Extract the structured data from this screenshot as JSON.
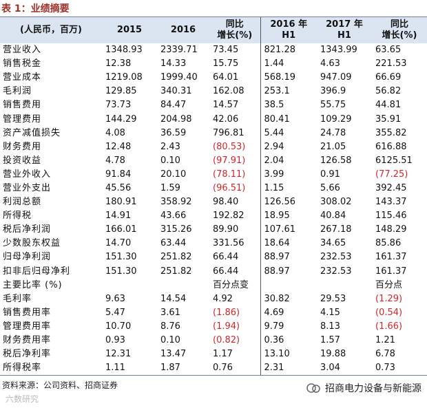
{
  "title": "表 1：业绩摘要",
  "table": {
    "header": [
      [
        "(人民币，百万)"
      ],
      [
        "2015"
      ],
      [
        "2016"
      ],
      [
        "同比",
        "增长(%)"
      ],
      [
        "2016 年",
        "H1"
      ],
      [
        "2017 年",
        "H1"
      ],
      [
        "同比",
        "增长(%)"
      ]
    ],
    "rows": [
      [
        "营业收入",
        "1348.93",
        "2339.71",
        "73.45",
        "821.28",
        "1343.99",
        "63.65"
      ],
      [
        "销售税金",
        "12.38",
        "14.33",
        "15.75",
        "1.44",
        "4.63",
        "221.53"
      ],
      [
        "营业成本",
        "1219.08",
        "1999.40",
        "64.01",
        "568.19",
        "947.09",
        "66.69"
      ],
      [
        "毛利润",
        "129.85",
        "340.31",
        "162.08",
        "253.1",
        "396.9",
        "56.82"
      ],
      [
        "销售费用",
        "73.73",
        "84.47",
        "14.57",
        "38.5",
        "55.75",
        "44.81"
      ],
      [
        "管理费用",
        "144.29",
        "204.98",
        "42.06",
        "80.41",
        "109.29",
        "35.91"
      ],
      [
        "资产减值损失",
        "4.08",
        "36.59",
        "796.81",
        "5.44",
        "24.78",
        "355.82"
      ],
      [
        "财务费用",
        "12.48",
        "2.43",
        "(80.53)",
        "2.94",
        "21.05",
        "616.88"
      ],
      [
        "投资收益",
        "4.78",
        "0.10",
        "(97.91)",
        "2.04",
        "126.58",
        "6125.51"
      ],
      [
        "营业外收入",
        "91.84",
        "20.10",
        "(78.11)",
        "3.99",
        "0.91",
        "(77.25)"
      ],
      [
        "营业外支出",
        "45.56",
        "1.59",
        "(96.51)",
        "1.15",
        "5.66",
        "392.45"
      ],
      [
        "利润总额",
        "180.91",
        "358.92",
        "98.40",
        "126.56",
        "308.02",
        "143.37"
      ],
      [
        "所得税",
        "14.91",
        "43.66",
        "192.82",
        "18.95",
        "40.84",
        "115.46"
      ],
      [
        "税后净利润",
        "166.01",
        "315.26",
        "89.90",
        "107.61",
        "267.18",
        "148.29"
      ],
      [
        "少数股东权益",
        "14.70",
        "63.44",
        "331.56",
        "18.64",
        "34.65",
        "85.86"
      ],
      [
        "归母净利润",
        "151.30",
        "251.82",
        "66.44",
        "88.97",
        "232.53",
        "161.37"
      ],
      [
        "扣非后归母净利",
        "151.30",
        "251.82",
        "66.44",
        "88.97",
        "232.53",
        "161.37"
      ],
      [
        "主要比率 (%)",
        null,
        null,
        "百分点变",
        null,
        null,
        "百分点"
      ],
      [
        "毛利率",
        "9.63",
        "14.54",
        "4.92",
        "30.82",
        "29.53",
        "(1.29)"
      ],
      [
        "销售费用率",
        "5.47",
        "3.61",
        "(1.86)",
        "4.69",
        "4.15",
        "(0.54)"
      ],
      [
        "管理费用率",
        "10.70",
        "8.76",
        "(1.94)",
        "9.79",
        "8.13",
        "(1.66)"
      ],
      [
        "财务费用率",
        "0.93",
        "0.10",
        "(0.82)",
        "0.36",
        "1.57",
        "1.21"
      ],
      [
        "税后净利率",
        "12.31",
        "13.47",
        "1.17",
        "13.10",
        "19.88",
        "6.78"
      ],
      [
        "所得税率",
        "1.11",
        "1.87",
        "0.76",
        "2.31",
        "3.04",
        "0.73"
      ]
    ]
  },
  "source": "资料来源：公司资料、招商证券",
  "watermark": "六数研究",
  "brand": "招商电力设备与新能源"
}
